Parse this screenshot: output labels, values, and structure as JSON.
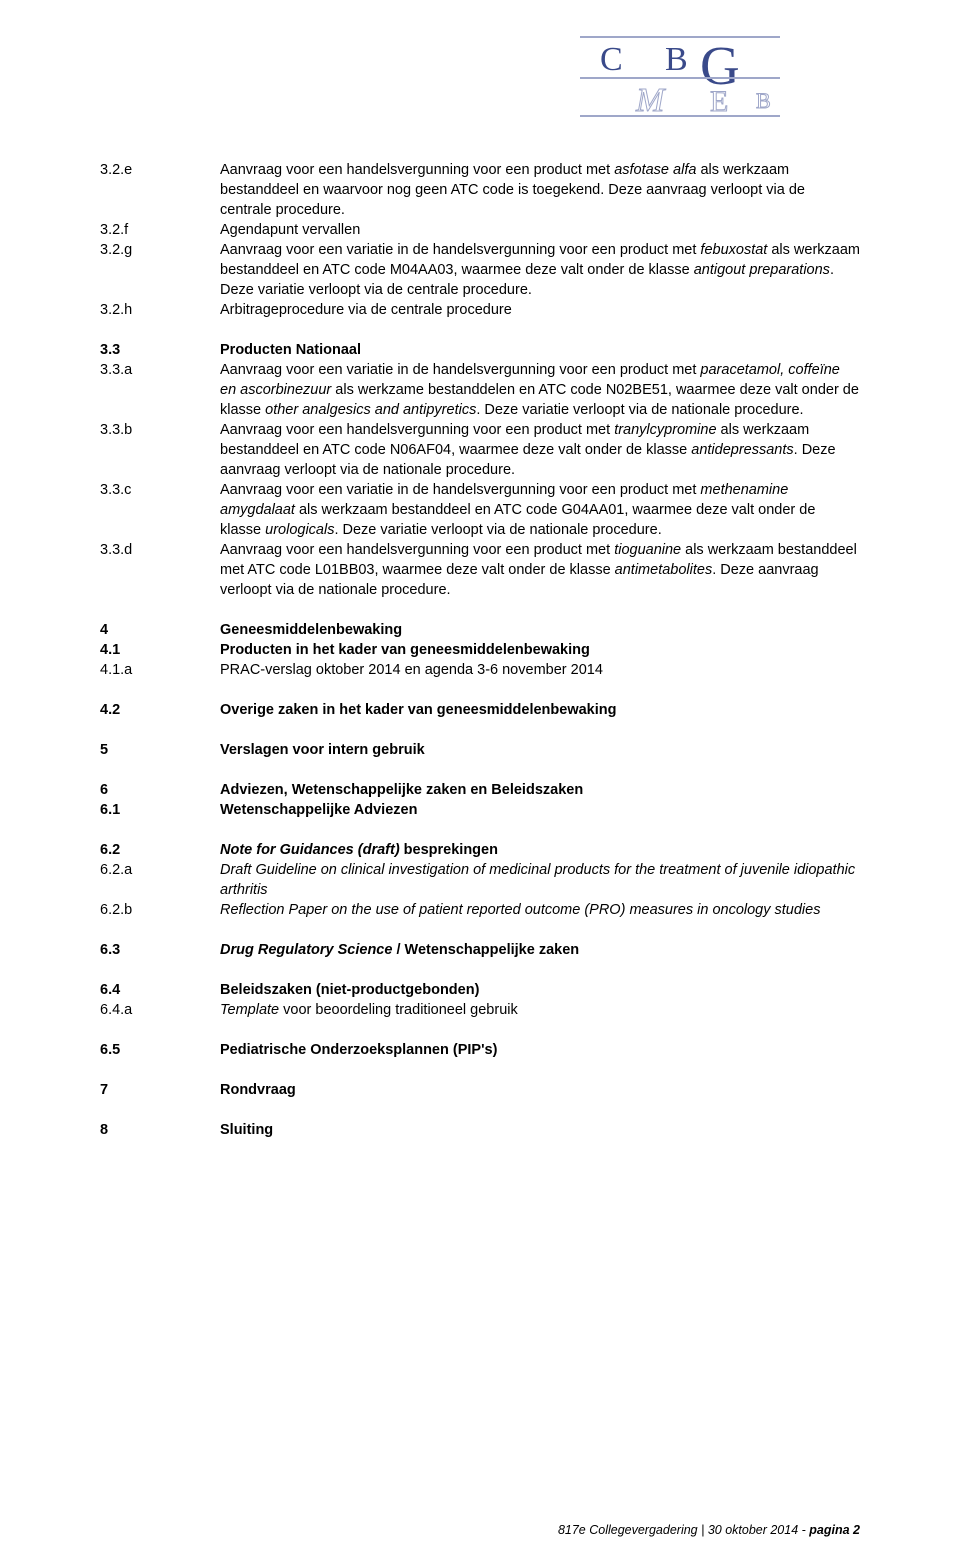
{
  "logo": {
    "top_line_color": "#9fa7c9",
    "mid_tint_color": "#bfc6de",
    "letter_color": "#3a4a8a",
    "outline_color": "#9fa7c9"
  },
  "blocks": [
    {
      "id": "b1",
      "entries": [
        {
          "num": "3.2.e",
          "bold": false,
          "segments": [
            {
              "t": "Aanvraag voor een handelsvergunning voor een product met "
            },
            {
              "t": "asfotase alfa",
              "i": true
            },
            {
              "t": " als werkzaam bestanddeel en waarvoor nog geen ATC code is toegekend. Deze aanvraag verloopt via de centrale procedure."
            }
          ]
        },
        {
          "num": "3.2.f",
          "bold": false,
          "segments": [
            {
              "t": "Agendapunt vervallen"
            }
          ]
        },
        {
          "num": "3.2.g",
          "bold": false,
          "segments": [
            {
              "t": "Aanvraag voor een variatie in de handelsvergunning voor een product met "
            },
            {
              "t": "febuxostat",
              "i": true
            },
            {
              "t": " als werkzaam bestanddeel en ATC code M04AA03, waarmee deze valt onder de klasse "
            },
            {
              "t": "antigout preparations",
              "i": true
            },
            {
              "t": ". Deze variatie verloopt via de centrale procedure."
            }
          ]
        },
        {
          "num": "3.2.h",
          "bold": false,
          "segments": [
            {
              "t": "Arbitrageprocedure via de centrale procedure"
            }
          ]
        }
      ]
    },
    {
      "id": "b2",
      "entries": [
        {
          "num": "3.3",
          "bold": true,
          "segments": [
            {
              "t": "Producten Nationaal",
              "b": true
            }
          ]
        },
        {
          "num": "3.3.a",
          "bold": false,
          "segments": [
            {
              "t": "Aanvraag voor een variatie in de handelsvergunning voor een product met "
            },
            {
              "t": "paracetamol, coffeïne en ascorbinezuur",
              "i": true
            },
            {
              "t": " als werkzame bestanddelen en ATC code N02BE51, waarmee deze valt onder de klasse "
            },
            {
              "t": "other analgesics and antipyretics",
              "i": true
            },
            {
              "t": ". Deze variatie verloopt via de nationale procedure."
            }
          ]
        },
        {
          "num": "3.3.b",
          "bold": false,
          "segments": [
            {
              "t": "Aanvraag voor een handelsvergunning voor een product met "
            },
            {
              "t": "tranylcypromine",
              "i": true
            },
            {
              "t": " als werkzaam bestanddeel en ATC code N06AF04, waarmee deze valt onder de klasse "
            },
            {
              "t": "antidepressants",
              "i": true
            },
            {
              "t": ". Deze aanvraag verloopt via de nationale procedure."
            }
          ]
        },
        {
          "num": "3.3.c",
          "bold": false,
          "segments": [
            {
              "t": "Aanvraag voor een variatie in de handelsvergunning voor een product met "
            },
            {
              "t": "methenamine amygdalaat",
              "i": true
            },
            {
              "t": " als werkzaam bestanddeel en ATC code G04AA01, waarmee deze valt onder de klasse "
            },
            {
              "t": "urologicals",
              "i": true
            },
            {
              "t": ". Deze variatie verloopt via de nationale procedure."
            }
          ]
        },
        {
          "num": "3.3.d",
          "bold": false,
          "segments": [
            {
              "t": "Aanvraag voor een handelsvergunning voor een product met "
            },
            {
              "t": "tioguanine",
              "i": true
            },
            {
              "t": " als werkzaam bestanddeel met ATC code L01BB03, waarmee deze valt onder de klasse "
            },
            {
              "t": "antimetabolites",
              "i": true
            },
            {
              "t": ". Deze aanvraag verloopt via de nationale procedure."
            }
          ]
        }
      ]
    },
    {
      "id": "b3",
      "entries": [
        {
          "num": "4",
          "bold": true,
          "segments": [
            {
              "t": "Geneesmiddelenbewaking",
              "b": true
            }
          ]
        },
        {
          "num": "4.1",
          "bold": true,
          "segments": [
            {
              "t": "Producten in het kader van geneesmiddelenbewaking",
              "b": true
            }
          ]
        },
        {
          "num": "4.1.a",
          "bold": false,
          "segments": [
            {
              "t": "PRAC-verslag oktober 2014 en agenda 3-6 november 2014"
            }
          ]
        }
      ]
    },
    {
      "id": "b4",
      "entries": [
        {
          "num": "4.2",
          "bold": true,
          "segments": [
            {
              "t": "Overige zaken in het kader van geneesmiddelenbewaking",
              "b": true
            }
          ]
        }
      ]
    },
    {
      "id": "b5",
      "entries": [
        {
          "num": "5",
          "bold": true,
          "segments": [
            {
              "t": "Verslagen voor intern gebruik",
              "b": true
            }
          ]
        }
      ]
    },
    {
      "id": "b6",
      "entries": [
        {
          "num": "6",
          "bold": true,
          "segments": [
            {
              "t": "Adviezen, Wetenschappelijke zaken en Beleidszaken",
              "b": true
            }
          ]
        },
        {
          "num": "6.1",
          "bold": true,
          "segments": [
            {
              "t": "Wetenschappelijke Adviezen",
              "b": true
            }
          ]
        }
      ]
    },
    {
      "id": "b7",
      "entries": [
        {
          "num": "6.2",
          "bold": true,
          "segments": [
            {
              "t": "Note for Guidances (draft)",
              "b": true,
              "i": true
            },
            {
              "t": " besprekingen",
              "b": true
            }
          ]
        },
        {
          "num": "6.2.a",
          "bold": false,
          "segments": [
            {
              "t": "Draft Guideline on clinical investigation of medicinal products for the treatment of juvenile idiopathic arthritis",
              "i": true
            }
          ]
        },
        {
          "num": "6.2.b",
          "bold": false,
          "segments": [
            {
              "t": "Reflection Paper on the use of patient reported outcome (PRO) measures in oncology studies",
              "i": true
            }
          ]
        }
      ]
    },
    {
      "id": "b8",
      "entries": [
        {
          "num": "6.3",
          "bold": true,
          "segments": [
            {
              "t": "Drug Regulatory Science",
              "b": true,
              "i": true
            },
            {
              "t": " / Wetenschappelijke zaken",
              "b": true
            }
          ]
        }
      ]
    },
    {
      "id": "b9",
      "entries": [
        {
          "num": "6.4",
          "bold": true,
          "segments": [
            {
              "t": "Beleidszaken (niet-productgebonden)",
              "b": true
            }
          ]
        },
        {
          "num": "6.4.a",
          "bold": false,
          "segments": [
            {
              "t": "Template",
              "i": true
            },
            {
              "t": " voor beoordeling traditioneel gebruik"
            }
          ]
        }
      ]
    },
    {
      "id": "b10",
      "entries": [
        {
          "num": "6.5",
          "bold": true,
          "segments": [
            {
              "t": "Pediatrische Onderzoeksplannen (PIP's)",
              "b": true
            }
          ]
        }
      ]
    },
    {
      "id": "b11",
      "entries": [
        {
          "num": "7",
          "bold": true,
          "segments": [
            {
              "t": "Rondvraag",
              "b": true
            }
          ]
        }
      ]
    },
    {
      "id": "b12",
      "entries": [
        {
          "num": "8",
          "bold": true,
          "segments": [
            {
              "t": "Sluiting",
              "b": true
            }
          ]
        }
      ]
    }
  ],
  "footer": {
    "text_left": "817e Collegevergadering | 30 oktober 2014 - ",
    "page_label": "pagina 2"
  }
}
